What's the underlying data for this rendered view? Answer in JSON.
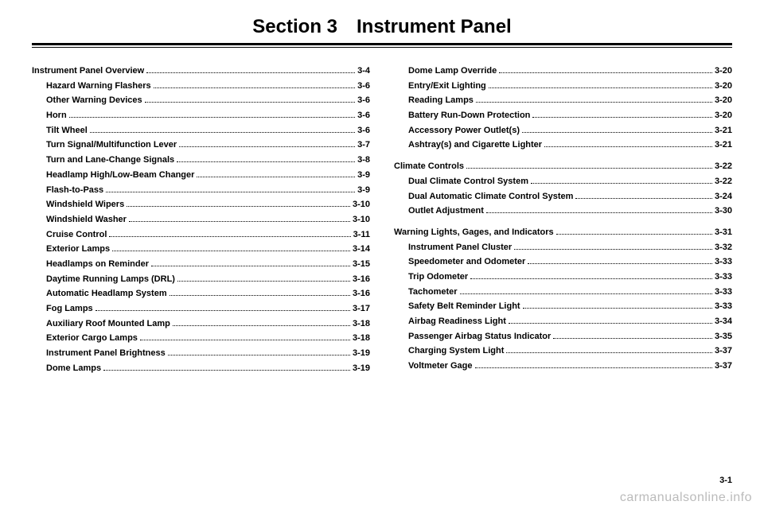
{
  "title": "Section 3 Instrument Panel",
  "footer": "3-1",
  "watermark": "carmanualsonline.info",
  "left": [
    {
      "t": "head",
      "label": "Instrument Panel Overview",
      "page": "3-4"
    },
    {
      "t": "sub",
      "label": "Hazard Warning Flashers",
      "page": "3-6"
    },
    {
      "t": "sub",
      "label": "Other Warning Devices",
      "page": "3-6"
    },
    {
      "t": "sub",
      "label": "Horn",
      "page": "3-6"
    },
    {
      "t": "sub",
      "label": "Tilt Wheel",
      "page": "3-6"
    },
    {
      "t": "sub",
      "label": "Turn Signal/Multifunction Lever",
      "page": "3-7"
    },
    {
      "t": "sub",
      "label": "Turn and Lane-Change Signals",
      "page": "3-8"
    },
    {
      "t": "sub",
      "label": "Headlamp High/Low-Beam Changer",
      "page": "3-9"
    },
    {
      "t": "sub",
      "label": "Flash-to-Pass",
      "page": "3-9"
    },
    {
      "t": "sub",
      "label": "Windshield Wipers",
      "page": "3-10"
    },
    {
      "t": "sub",
      "label": "Windshield Washer",
      "page": "3-10"
    },
    {
      "t": "sub",
      "label": "Cruise Control",
      "page": "3-11"
    },
    {
      "t": "sub",
      "label": "Exterior Lamps",
      "page": "3-14"
    },
    {
      "t": "sub",
      "label": "Headlamps on Reminder",
      "page": "3-15"
    },
    {
      "t": "sub",
      "label": "Daytime Running Lamps (DRL)",
      "page": "3-16"
    },
    {
      "t": "sub",
      "label": "Automatic Headlamp System",
      "page": "3-16"
    },
    {
      "t": "sub",
      "label": "Fog Lamps",
      "page": "3-17"
    },
    {
      "t": "sub",
      "label": "Auxiliary Roof Mounted Lamp",
      "page": "3-18"
    },
    {
      "t": "sub",
      "label": "Exterior Cargo Lamps",
      "page": "3-18"
    },
    {
      "t": "sub",
      "label": "Instrument Panel Brightness",
      "page": "3-19"
    },
    {
      "t": "sub",
      "label": "Dome Lamps",
      "page": "3-19"
    }
  ],
  "right": [
    {
      "t": "sub",
      "label": "Dome Lamp Override",
      "page": "3-20"
    },
    {
      "t": "sub",
      "label": "Entry/Exit Lighting",
      "page": "3-20"
    },
    {
      "t": "sub",
      "label": "Reading Lamps",
      "page": "3-20"
    },
    {
      "t": "sub",
      "label": "Battery Run-Down Protection",
      "page": "3-20"
    },
    {
      "t": "sub",
      "label": "Accessory Power Outlet(s)",
      "page": "3-21"
    },
    {
      "t": "sub",
      "label": "Ashtray(s) and Cigarette Lighter",
      "page": "3-21"
    },
    {
      "t": "gap"
    },
    {
      "t": "head",
      "label": "Climate Controls",
      "page": "3-22"
    },
    {
      "t": "sub",
      "label": "Dual Climate Control System",
      "page": "3-22"
    },
    {
      "t": "sub",
      "label": "Dual Automatic Climate Control System",
      "page": "3-24"
    },
    {
      "t": "sub",
      "label": "Outlet Adjustment",
      "page": "3-30"
    },
    {
      "t": "gap"
    },
    {
      "t": "head",
      "label": "Warning Lights, Gages, and Indicators",
      "page": "3-31"
    },
    {
      "t": "sub",
      "label": "Instrument Panel Cluster",
      "page": "3-32"
    },
    {
      "t": "sub",
      "label": "Speedometer and Odometer",
      "page": "3-33"
    },
    {
      "t": "sub",
      "label": "Trip Odometer",
      "page": "3-33"
    },
    {
      "t": "sub",
      "label": "Tachometer",
      "page": "3-33"
    },
    {
      "t": "sub",
      "label": "Safety Belt Reminder Light",
      "page": "3-33"
    },
    {
      "t": "sub",
      "label": "Airbag Readiness Light",
      "page": "3-34"
    },
    {
      "t": "sub",
      "label": "Passenger Airbag Status Indicator",
      "page": "3-35"
    },
    {
      "t": "sub",
      "label": "Charging System Light",
      "page": "3-37"
    },
    {
      "t": "sub",
      "label": "Voltmeter Gage",
      "page": "3-37"
    }
  ]
}
